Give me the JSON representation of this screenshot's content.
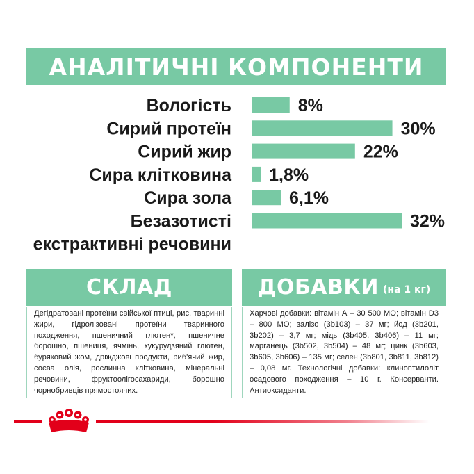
{
  "header": {
    "title": "АНАЛІТИЧНІ КОМПОНЕНТИ"
  },
  "chart_data": {
    "type": "bar",
    "orientation": "horizontal",
    "categories": [
      "Вологість",
      "Сирий протеїн",
      "Сирий жир",
      "Сира клітковина",
      "Сира зола",
      "Безазотисті екстрактивні речовини"
    ],
    "category_lines": [
      [
        "Вологість"
      ],
      [
        "Сирий протеїн"
      ],
      [
        "Сирий жир"
      ],
      [
        "Сира клітковина"
      ],
      [
        "Сира зола"
      ],
      [
        "Безазотисті",
        "екстрактивні речовини"
      ]
    ],
    "values": [
      8,
      30,
      22,
      1.8,
      6.1,
      32
    ],
    "value_labels": [
      "8%",
      "30%",
      "22%",
      "1,8%",
      "6,1%",
      "32%"
    ],
    "unit": "%",
    "xlim": [
      0,
      32
    ],
    "grid": false,
    "bar_color": "#78c9a4"
  },
  "composition": {
    "title": "СКЛАД",
    "text": "Дегідратовані протеїни свійської птиці, рис, тваринні жири, гідролізовані протеїни тваринного походження, пшеничний глютен*, пшеничне борошно, пшениця, ячмінь, кукурудзяний глютен, буряковий жом, дріжджові продукти, риб'ячий жир, соєва олія, рослинна клітковина, мінеральні речовини, фруктоолігосахариди, борошно чорнобривців прямостоячих."
  },
  "additives": {
    "title": "ДОБАВКИ",
    "subtitle": "(на 1 кг)",
    "text": "Харчові добавки: вітамін А – 30 500 МО; вітамін D3 – 800 МО; залізо (3b103) – 37 мг; йод (3b201, 3b202) – 3,7 мг; мідь (3b405, 3b406) – 11 мг; марганець (3b502, 3b504) – 48 мг; цинк (3b603, 3b605, 3b606) – 135 мг; селен (3b801, 3b811, 3b812) – 0,08 мг. Технологічні добавки: клиноптилоліт осадового походження – 10 г. Консерванти. Антиоксиданти."
  },
  "colors": {
    "accent": "#78c9a4",
    "brand_red": "#e2001a",
    "text": "#1a1a1a"
  },
  "icons": {
    "logo": "royal-canin-crown-icon"
  }
}
